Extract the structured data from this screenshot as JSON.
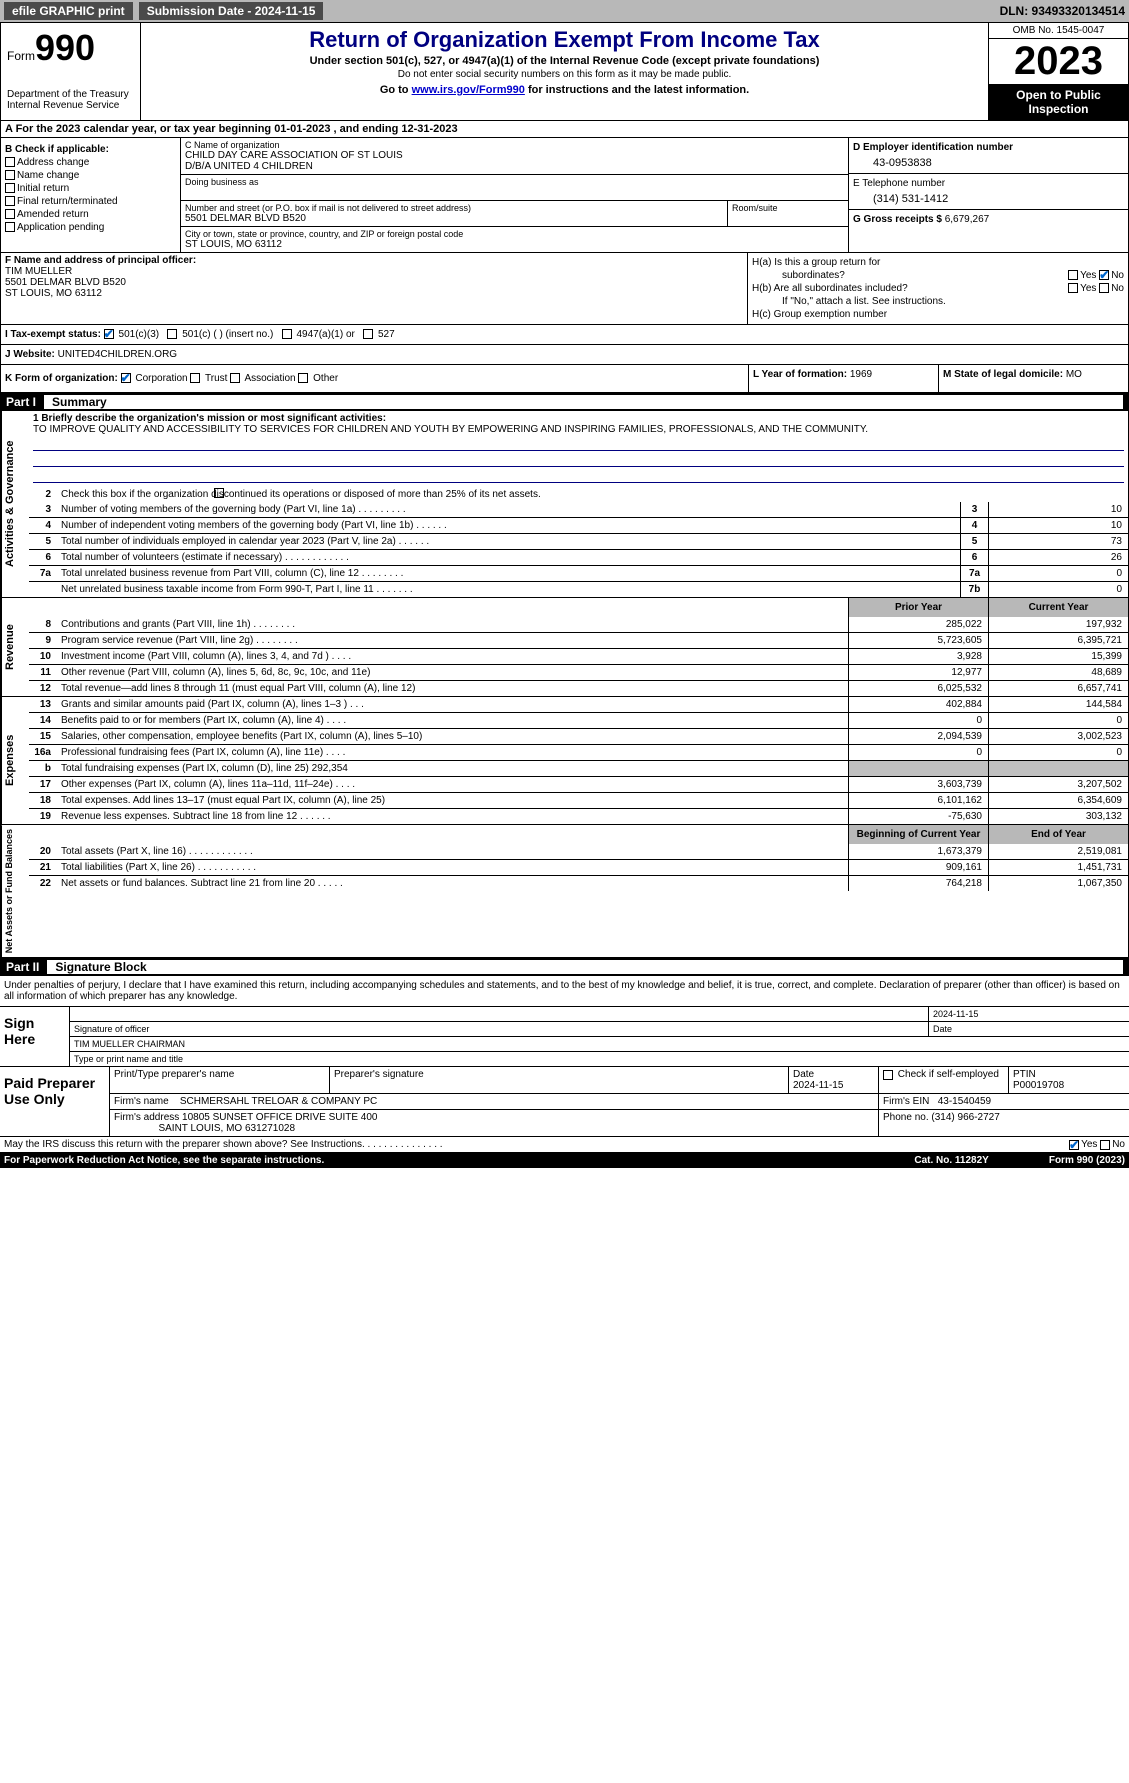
{
  "topbar": {
    "efile": "efile GRAPHIC print",
    "submission": "Submission Date - 2024-11-15",
    "dln": "DLN: 93493320134514"
  },
  "header": {
    "form_prefix": "Form",
    "form_number": "990",
    "dept": "Department of the Treasury",
    "irs": "Internal Revenue Service",
    "title": "Return of Organization Exempt From Income Tax",
    "sub1": "Under section 501(c), 527, or 4947(a)(1) of the Internal Revenue Code (except private foundations)",
    "sub2": "Do not enter social security numbers on this form as it may be made public.",
    "sub3_a": "Go to ",
    "sub3_link": "www.irs.gov/Form990",
    "sub3_b": " for instructions and the latest information.",
    "omb": "OMB No. 1545-0047",
    "year": "2023",
    "open": "Open to Public Inspection"
  },
  "row_a": "A For the 2023 calendar year, or tax year beginning 01-01-2023    , and ending 12-31-2023",
  "col_b": {
    "header": "B Check if applicable:",
    "items": [
      "Address change",
      "Name change",
      "Initial return",
      "Final return/terminated",
      "Amended return",
      "Application pending"
    ]
  },
  "c_name": {
    "lbl": "C Name of organization",
    "name": "CHILD DAY CARE ASSOCIATION OF ST LOUIS",
    "dba": "D/B/A UNITED 4 CHILDREN",
    "dba_lbl": "Doing business as"
  },
  "c_addr": {
    "street_lbl": "Number and street (or P.O. box if mail is not delivered to street address)",
    "street": "5501 DELMAR BLVD B520",
    "room_lbl": "Room/suite",
    "city_lbl": "City or town, state or province, country, and ZIP or foreign postal code",
    "city": "ST LOUIS, MO  63112"
  },
  "d_ein": {
    "lbl": "D Employer identification number",
    "val": "43-0953838"
  },
  "e_tel": {
    "lbl": "E Telephone number",
    "val": "(314) 531-1412"
  },
  "g_gross": {
    "lbl": "G Gross receipts $",
    "val": "6,679,267"
  },
  "f_officer": {
    "lbl": "F Name and address of principal officer:",
    "name": "TIM MUELLER",
    "addr1": "5501 DELMAR BLVD B520",
    "addr2": "ST LOUIS, MO  63112"
  },
  "h": {
    "a": "H(a)  Is this a group return for",
    "a2": "subordinates?",
    "b": "H(b)  Are all subordinates included?",
    "b2": "If \"No,\" attach a list. See instructions.",
    "c": "H(c)  Group exemption number",
    "yes": "Yes",
    "no": "No"
  },
  "i": {
    "lbl": "I    Tax-exempt status:",
    "opt1": "501(c)(3)",
    "opt2": "501(c) (  ) (insert no.)",
    "opt3": "4947(a)(1) or",
    "opt4": "527"
  },
  "j": {
    "lbl": "J   Website:",
    "val": "UNITED4CHILDREN.ORG"
  },
  "k": {
    "lbl": "K Form of organization:",
    "corp": "Corporation",
    "trust": "Trust",
    "assoc": "Association",
    "other": "Other"
  },
  "l": {
    "lbl": "L Year of formation:",
    "val": "1969"
  },
  "m": {
    "lbl": "M State of legal domicile:",
    "val": "MO"
  },
  "part1": {
    "num": "Part I",
    "title": "Summary"
  },
  "summary": {
    "vlabel_ag": "Activities & Governance",
    "vlabel_rev": "Revenue",
    "vlabel_exp": "Expenses",
    "vlabel_net": "Net Assets or Fund Balances",
    "l1_lbl": "1   Briefly describe the organization's mission or most significant activities:",
    "l1_val": "TO IMPROVE QUALITY AND ACCESSIBILITY TO SERVICES FOR CHILDREN AND YOUTH BY EMPOWERING AND INSPIRING FAMILIES, PROFESSIONALS, AND THE COMMUNITY.",
    "l2": "Check this box         if the organization discontinued its operations or disposed of more than 25% of its net assets.",
    "l3": "Number of voting members of the governing body (Part VI, line 1a)   .   .   .   .   .   .   .   .   .",
    "l3v": "10",
    "l4": "Number of independent voting members of the governing body (Part VI, line 1b)   .   .   .   .   .   .",
    "l4v": "10",
    "l5": "Total number of individuals employed in calendar year 2023 (Part V, line 2a)   .   .   .   .   .   .",
    "l5v": "73",
    "l6": "Total number of volunteers (estimate if necessary)    .   .   .   .   .   .   .   .   .   .   .   .",
    "l6v": "26",
    "l7a": "Total unrelated business revenue from Part VIII, column (C), line 12   .   .   .   .   .   .   .   .",
    "l7av": "0",
    "l7b": "Net unrelated business taxable income from Form 990-T, Part I, line 11   .   .   .   .   .   .   .",
    "l7bv": "0",
    "hdr_prior": "Prior Year",
    "hdr_curr": "Current Year",
    "rows_rev": [
      {
        "n": "8",
        "d": "Contributions and grants (Part VIII, line 1h)   .   .   .   .   .   .   .   .",
        "p": "285,022",
        "c": "197,932"
      },
      {
        "n": "9",
        "d": "Program service revenue (Part VIII, line 2g)   .   .   .   .   .   .   .   .",
        "p": "5,723,605",
        "c": "6,395,721"
      },
      {
        "n": "10",
        "d": "Investment income (Part VIII, column (A), lines 3, 4, and 7d )   .   .   .   .",
        "p": "3,928",
        "c": "15,399"
      },
      {
        "n": "11",
        "d": "Other revenue (Part VIII, column (A), lines 5, 6d, 8c, 9c, 10c, and 11e)",
        "p": "12,977",
        "c": "48,689"
      },
      {
        "n": "12",
        "d": "Total revenue—add lines 8 through 11 (must equal Part VIII, column (A), line 12)",
        "p": "6,025,532",
        "c": "6,657,741"
      }
    ],
    "rows_exp": [
      {
        "n": "13",
        "d": "Grants and similar amounts paid (Part IX, column (A), lines 1–3 )   .   .   .",
        "p": "402,884",
        "c": "144,584"
      },
      {
        "n": "14",
        "d": "Benefits paid to or for members (Part IX, column (A), line 4)   .   .   .   .",
        "p": "0",
        "c": "0"
      },
      {
        "n": "15",
        "d": "Salaries, other compensation, employee benefits (Part IX, column (A), lines 5–10)",
        "p": "2,094,539",
        "c": "3,002,523"
      },
      {
        "n": "16a",
        "d": "Professional fundraising fees (Part IX, column (A), line 11e)   .   .   .   .",
        "p": "0",
        "c": "0"
      },
      {
        "n": "b",
        "d": "Total fundraising expenses (Part IX, column (D), line 25) 292,354",
        "p": "",
        "c": "",
        "shaded": true
      },
      {
        "n": "17",
        "d": "Other expenses (Part IX, column (A), lines 11a–11d, 11f–24e)   .   .   .   .",
        "p": "3,603,739",
        "c": "3,207,502"
      },
      {
        "n": "18",
        "d": "Total expenses. Add lines 13–17 (must equal Part IX, column (A), line 25)",
        "p": "6,101,162",
        "c": "6,354,609"
      },
      {
        "n": "19",
        "d": "Revenue less expenses. Subtract line 18 from line 12   .   .   .   .   .   .",
        "p": "-75,630",
        "c": "303,132"
      }
    ],
    "hdr_begin": "Beginning of Current Year",
    "hdr_end": "End of Year",
    "rows_net": [
      {
        "n": "20",
        "d": "Total assets (Part X, line 16)   .   .   .   .   .   .   .   .   .   .   .   .",
        "p": "1,673,379",
        "c": "2,519,081"
      },
      {
        "n": "21",
        "d": "Total liabilities (Part X, line 26)   .   .   .   .   .   .   .   .   .   .   .",
        "p": "909,161",
        "c": "1,451,731"
      },
      {
        "n": "22",
        "d": "Net assets or fund balances. Subtract line 21 from line 20   .   .   .   .   .",
        "p": "764,218",
        "c": "1,067,350"
      }
    ]
  },
  "part2": {
    "num": "Part II",
    "title": "Signature Block"
  },
  "perjury": "Under penalties of perjury, I declare that I have examined this return, including accompanying schedules and statements, and to the best of my knowledge and belief, it is true, correct, and complete. Declaration of preparer (other than officer) is based on all information of which preparer has any knowledge.",
  "sign": {
    "here": "Sign Here",
    "sig_lbl": "Signature of officer",
    "name": "TIM MUELLER  CHAIRMAN",
    "name_lbl": "Type or print name and title",
    "date_lbl": "Date",
    "date": "2024-11-15"
  },
  "paid": {
    "title": "Paid Preparer Use Only",
    "print_lbl": "Print/Type preparer's name",
    "sig_lbl": "Preparer's signature",
    "date_lbl": "Date",
    "date": "2024-11-15",
    "check_lbl": "Check         if self-employed",
    "ptin_lbl": "PTIN",
    "ptin": "P00019708",
    "firm_lbl": "Firm's name",
    "firm": "SCHMERSAHL TRELOAR & COMPANY PC",
    "ein_lbl": "Firm's EIN",
    "ein": "43-1540459",
    "addr_lbl": "Firm's address",
    "addr1": "10805 SUNSET OFFICE DRIVE SUITE 400",
    "addr2": "SAINT LOUIS, MO  631271028",
    "phone_lbl": "Phone no.",
    "phone": "(314) 966-2727"
  },
  "discuss": "May the IRS discuss this return with the preparer shown above? See Instructions.   .   .   .   .   .   .   .   .   .   .   .   .   .   .",
  "bottom": {
    "l": "For Paperwork Reduction Act Notice, see the separate instructions.",
    "m": "Cat. No. 11282Y",
    "r": "Form 990 (2023)"
  }
}
